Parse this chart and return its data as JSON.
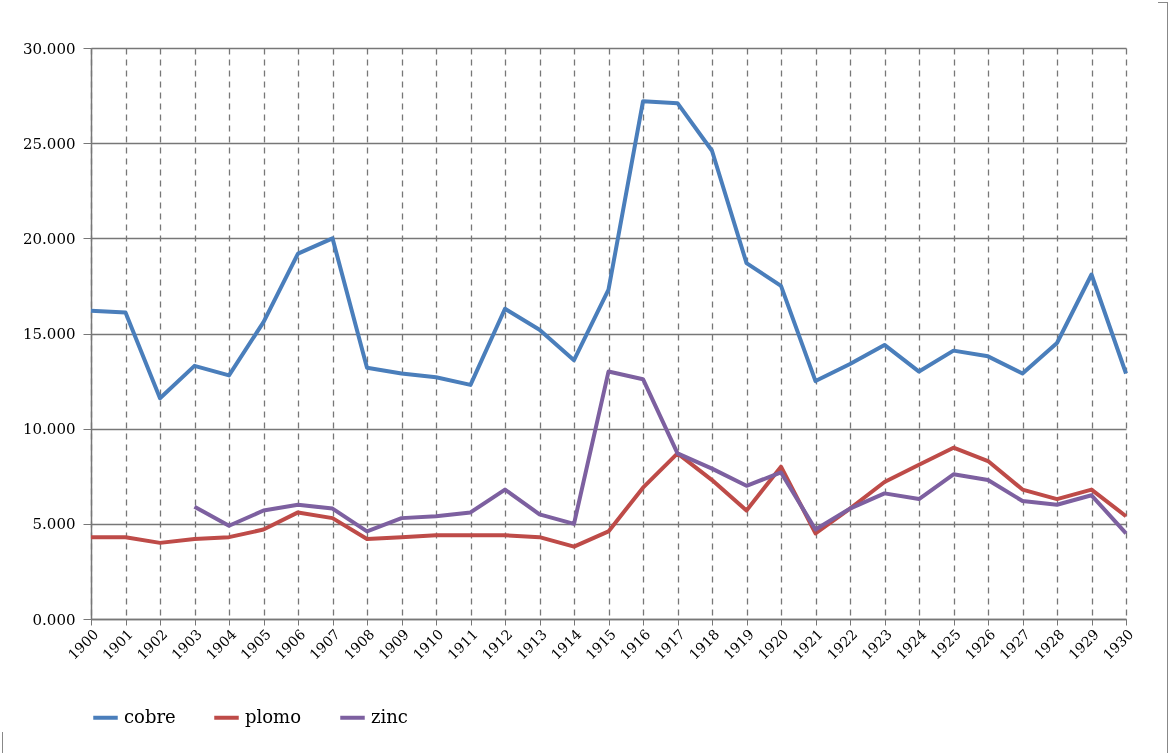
{
  "chart_data": {
    "type": "line",
    "categories": [
      "1900",
      "1901",
      "1902",
      "1903",
      "1904",
      "1905",
      "1906",
      "1907",
      "1908",
      "1909",
      "1910",
      "1911",
      "1912",
      "1913",
      "1914",
      "1915",
      "1916",
      "1917",
      "1918",
      "1919",
      "1920",
      "1921",
      "1922",
      "1923",
      "1924",
      "1925",
      "1926",
      "1927",
      "1928",
      "1929",
      "1930"
    ],
    "series": [
      {
        "name": "cobre",
        "color": "#4a7ebb",
        "values": [
          16.2,
          16.1,
          11.6,
          13.3,
          12.8,
          15.6,
          19.2,
          20.0,
          13.2,
          12.9,
          12.7,
          12.3,
          16.3,
          15.2,
          13.6,
          17.3,
          27.2,
          27.1,
          24.6,
          18.7,
          17.5,
          12.5,
          13.4,
          14.4,
          13.0,
          14.1,
          13.8,
          12.9,
          14.5,
          18.1,
          12.9
        ]
      },
      {
        "name": "plomo",
        "color": "#be4b48",
        "values": [
          4.3,
          4.3,
          4.0,
          4.2,
          4.3,
          4.7,
          5.6,
          5.3,
          4.2,
          4.3,
          4.4,
          4.4,
          4.4,
          4.3,
          3.8,
          4.6,
          6.9,
          8.7,
          7.3,
          5.7,
          8.0,
          4.5,
          5.8,
          7.2,
          8.1,
          9.0,
          8.3,
          6.8,
          6.3,
          6.8,
          5.4
        ]
      },
      {
        "name": "zinc",
        "color": "#7d60a0",
        "values": [
          null,
          null,
          null,
          5.9,
          4.9,
          5.7,
          6.0,
          5.8,
          4.6,
          5.3,
          5.4,
          5.6,
          6.8,
          5.5,
          5.0,
          13.0,
          12.6,
          8.7,
          7.9,
          7.0,
          7.7,
          4.7,
          5.8,
          6.6,
          6.3,
          7.6,
          7.3,
          6.2,
          6.0,
          6.5,
          4.5
        ]
      }
    ],
    "ylim": [
      0,
      30
    ],
    "yticks": [
      {
        "value": 0,
        "label": "0.000"
      },
      {
        "value": 5,
        "label": "5.000"
      },
      {
        "value": 10,
        "label": "10.000"
      },
      {
        "value": 15,
        "label": "15.000"
      },
      {
        "value": 20,
        "label": "20.000"
      },
      {
        "value": 25,
        "label": "25.000"
      },
      {
        "value": 30,
        "label": "30.000"
      }
    ],
    "grid": true,
    "legend": "bottom",
    "marker": "none",
    "line_style": "solid"
  }
}
